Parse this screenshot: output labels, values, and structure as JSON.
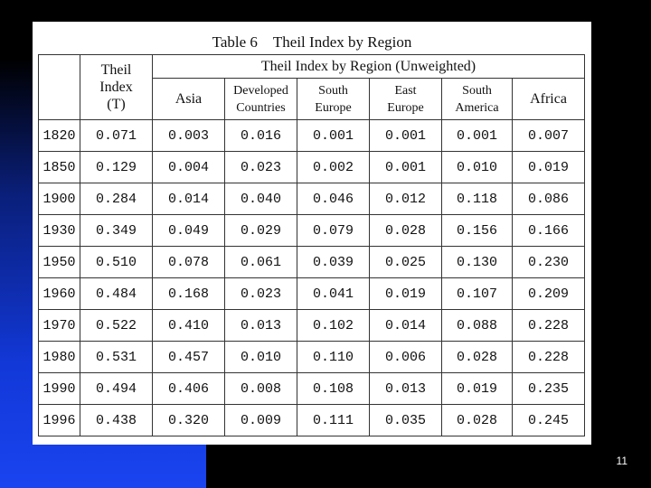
{
  "table": {
    "title": "Table 6　Theil Index by Region",
    "header": {
      "theil": [
        "Theil",
        "Index",
        "(T)"
      ],
      "group": "Theil Index by Region (Unweighted)",
      "regions": [
        [
          "Asia"
        ],
        [
          "Developed",
          "Countries"
        ],
        [
          "South",
          "Europe"
        ],
        [
          "East",
          "Europe"
        ],
        [
          "South",
          "America"
        ],
        [
          "Africa"
        ]
      ]
    },
    "rows": [
      [
        "1820",
        "0.071",
        "0.003",
        "0.016",
        "0.001",
        "0.001",
        "0.001",
        "0.007"
      ],
      [
        "1850",
        "0.129",
        "0.004",
        "0.023",
        "0.002",
        "0.001",
        "0.010",
        "0.019"
      ],
      [
        "1900",
        "0.284",
        "0.014",
        "0.040",
        "0.046",
        "0.012",
        "0.118",
        "0.086"
      ],
      [
        "1930",
        "0.349",
        "0.049",
        "0.029",
        "0.079",
        "0.028",
        "0.156",
        "0.166"
      ],
      [
        "1950",
        "0.510",
        "0.078",
        "0.061",
        "0.039",
        "0.025",
        "0.130",
        "0.230"
      ],
      [
        "1960",
        "0.484",
        "0.168",
        "0.023",
        "0.041",
        "0.019",
        "0.107",
        "0.209"
      ],
      [
        "1970",
        "0.522",
        "0.410",
        "0.013",
        "0.102",
        "0.014",
        "0.088",
        "0.228"
      ],
      [
        "1980",
        "0.531",
        "0.457",
        "0.010",
        "0.110",
        "0.006",
        "0.028",
        "0.228"
      ],
      [
        "1990",
        "0.494",
        "0.406",
        "0.008",
        "0.108",
        "0.013",
        "0.019",
        "0.235"
      ],
      [
        "1996",
        "0.438",
        "0.320",
        "0.009",
        "0.111",
        "0.035",
        "0.028",
        "0.245"
      ]
    ]
  },
  "slide_number": "11"
}
